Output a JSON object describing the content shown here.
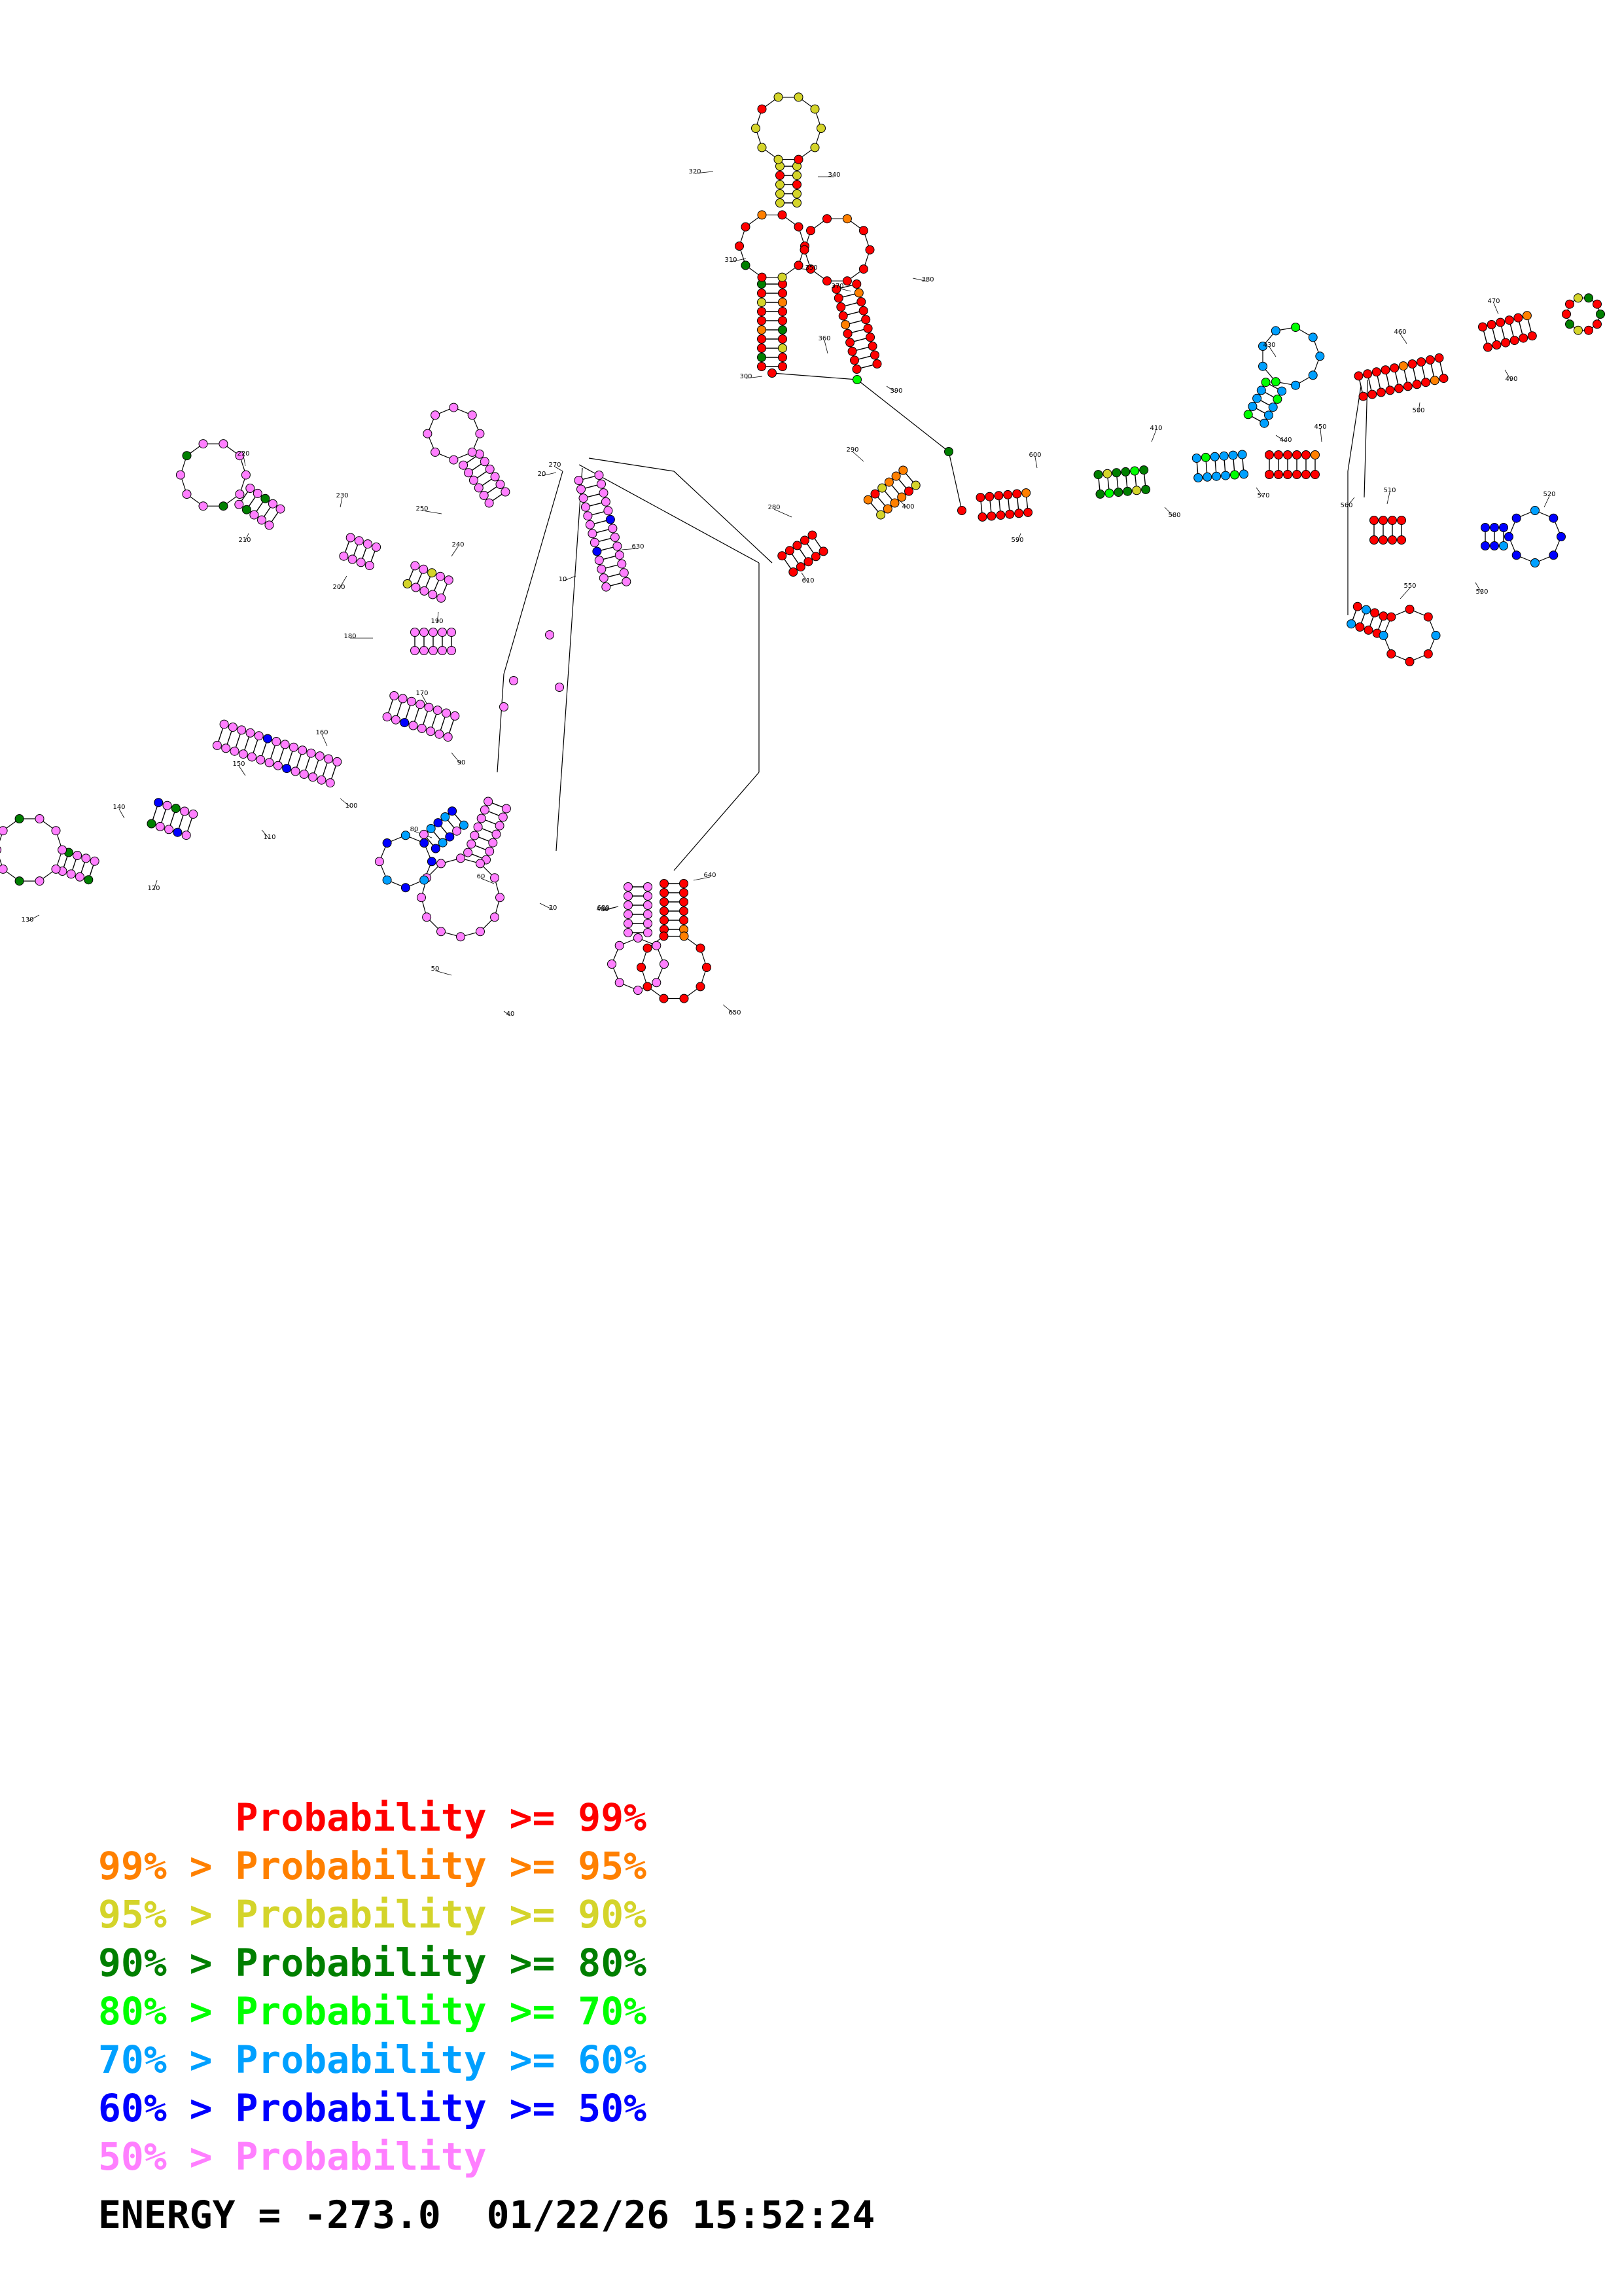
{
  "colors": {
    "p99": "#ff0000",
    "p95": "#ff8000",
    "p90": "#d4d42a",
    "p80": "#007f00",
    "p70": "#00ff00",
    "p60": "#00a0ff",
    "p50": "#0000ff",
    "plow": "#ff7fff",
    "outline": "#000000"
  },
  "position_labels": [
    "10",
    "20",
    "30",
    "40",
    "50",
    "60",
    "80",
    "90",
    "100",
    "110",
    "120",
    "130",
    "140",
    "150",
    "160",
    "170",
    "180",
    "190",
    "200",
    "210",
    "220",
    "230",
    "240",
    "250",
    "270",
    "280",
    "290",
    "300",
    "310",
    "320",
    "340",
    "350",
    "360",
    "370",
    "380",
    "390",
    "400",
    "410",
    "430",
    "440",
    "450",
    "460",
    "470",
    "480",
    "490",
    "500",
    "510",
    "520",
    "530",
    "550",
    "560",
    "570",
    "580",
    "590",
    "600",
    "610",
    "630",
    "640",
    "650",
    "680"
  ],
  "legend": [
    {
      "prefix": "    ",
      "text": "Probability >= 99%",
      "color": "#ff0000"
    },
    {
      "prefix": "99% > ",
      "text": "Probability >= 95%",
      "color": "#ff8000"
    },
    {
      "prefix": "95% > ",
      "text": "Probability >= 90%",
      "color": "#d4d42a"
    },
    {
      "prefix": "90% > ",
      "text": "Probability >= 80%",
      "color": "#007f00"
    },
    {
      "prefix": "80% > ",
      "text": "Probability >= 70%",
      "color": "#00ff00"
    },
    {
      "prefix": "70% > ",
      "text": "Probability >= 60%",
      "color": "#00a0ff"
    },
    {
      "prefix": "60% > ",
      "text": "Probability >= 50%",
      "color": "#0000ff"
    },
    {
      "prefix": "50% > ",
      "text": "Probability",
      "color": "#ff7fff"
    }
  ],
  "legend_text": {
    "row0": "      Probability >= 99%",
    "row1": "99% > Probability >= 95%",
    "row2": "95% > Probability >= 90%",
    "row3": "90% > Probability >= 80%",
    "row4": "80% > Probability >= 70%",
    "row5": "70% > Probability >= 60%",
    "row6": "60% > Probability >= 50%",
    "row7": "50% > Probability"
  },
  "footer": {
    "energy_label": "ENERGY = -273.0",
    "timestamp": "01/22/26 15:52:24"
  }
}
